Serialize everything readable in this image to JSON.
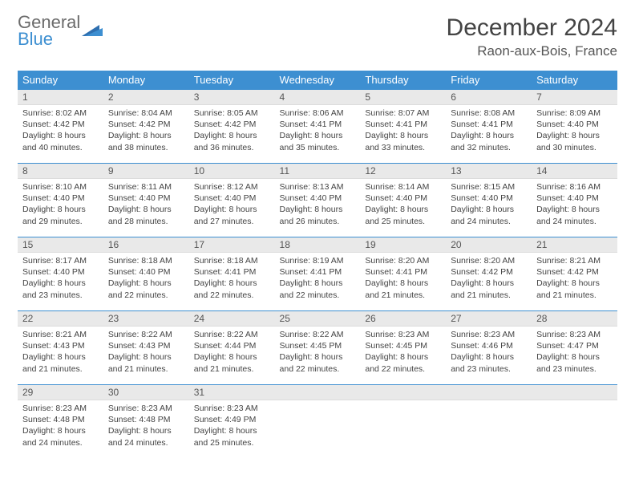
{
  "logo": {
    "line1": "General",
    "line2": "Blue"
  },
  "header": {
    "month_title": "December 2024",
    "location": "Raon-aux-Bois, France"
  },
  "colors": {
    "brand_blue": "#3d8fd1",
    "header_bg": "#3d8fd1",
    "header_text": "#ffffff",
    "daynum_bg": "#e9e9e9",
    "row_border": "#3d8fd1",
    "text": "#444444"
  },
  "calendar": {
    "day_headers": [
      "Sunday",
      "Monday",
      "Tuesday",
      "Wednesday",
      "Thursday",
      "Friday",
      "Saturday"
    ],
    "weeks": [
      [
        {
          "num": "1",
          "sunrise": "Sunrise: 8:02 AM",
          "sunset": "Sunset: 4:42 PM",
          "daylight": "Daylight: 8 hours and 40 minutes."
        },
        {
          "num": "2",
          "sunrise": "Sunrise: 8:04 AM",
          "sunset": "Sunset: 4:42 PM",
          "daylight": "Daylight: 8 hours and 38 minutes."
        },
        {
          "num": "3",
          "sunrise": "Sunrise: 8:05 AM",
          "sunset": "Sunset: 4:42 PM",
          "daylight": "Daylight: 8 hours and 36 minutes."
        },
        {
          "num": "4",
          "sunrise": "Sunrise: 8:06 AM",
          "sunset": "Sunset: 4:41 PM",
          "daylight": "Daylight: 8 hours and 35 minutes."
        },
        {
          "num": "5",
          "sunrise": "Sunrise: 8:07 AM",
          "sunset": "Sunset: 4:41 PM",
          "daylight": "Daylight: 8 hours and 33 minutes."
        },
        {
          "num": "6",
          "sunrise": "Sunrise: 8:08 AM",
          "sunset": "Sunset: 4:41 PM",
          "daylight": "Daylight: 8 hours and 32 minutes."
        },
        {
          "num": "7",
          "sunrise": "Sunrise: 8:09 AM",
          "sunset": "Sunset: 4:40 PM",
          "daylight": "Daylight: 8 hours and 30 minutes."
        }
      ],
      [
        {
          "num": "8",
          "sunrise": "Sunrise: 8:10 AM",
          "sunset": "Sunset: 4:40 PM",
          "daylight": "Daylight: 8 hours and 29 minutes."
        },
        {
          "num": "9",
          "sunrise": "Sunrise: 8:11 AM",
          "sunset": "Sunset: 4:40 PM",
          "daylight": "Daylight: 8 hours and 28 minutes."
        },
        {
          "num": "10",
          "sunrise": "Sunrise: 8:12 AM",
          "sunset": "Sunset: 4:40 PM",
          "daylight": "Daylight: 8 hours and 27 minutes."
        },
        {
          "num": "11",
          "sunrise": "Sunrise: 8:13 AM",
          "sunset": "Sunset: 4:40 PM",
          "daylight": "Daylight: 8 hours and 26 minutes."
        },
        {
          "num": "12",
          "sunrise": "Sunrise: 8:14 AM",
          "sunset": "Sunset: 4:40 PM",
          "daylight": "Daylight: 8 hours and 25 minutes."
        },
        {
          "num": "13",
          "sunrise": "Sunrise: 8:15 AM",
          "sunset": "Sunset: 4:40 PM",
          "daylight": "Daylight: 8 hours and 24 minutes."
        },
        {
          "num": "14",
          "sunrise": "Sunrise: 8:16 AM",
          "sunset": "Sunset: 4:40 PM",
          "daylight": "Daylight: 8 hours and 24 minutes."
        }
      ],
      [
        {
          "num": "15",
          "sunrise": "Sunrise: 8:17 AM",
          "sunset": "Sunset: 4:40 PM",
          "daylight": "Daylight: 8 hours and 23 minutes."
        },
        {
          "num": "16",
          "sunrise": "Sunrise: 8:18 AM",
          "sunset": "Sunset: 4:40 PM",
          "daylight": "Daylight: 8 hours and 22 minutes."
        },
        {
          "num": "17",
          "sunrise": "Sunrise: 8:18 AM",
          "sunset": "Sunset: 4:41 PM",
          "daylight": "Daylight: 8 hours and 22 minutes."
        },
        {
          "num": "18",
          "sunrise": "Sunrise: 8:19 AM",
          "sunset": "Sunset: 4:41 PM",
          "daylight": "Daylight: 8 hours and 22 minutes."
        },
        {
          "num": "19",
          "sunrise": "Sunrise: 8:20 AM",
          "sunset": "Sunset: 4:41 PM",
          "daylight": "Daylight: 8 hours and 21 minutes."
        },
        {
          "num": "20",
          "sunrise": "Sunrise: 8:20 AM",
          "sunset": "Sunset: 4:42 PM",
          "daylight": "Daylight: 8 hours and 21 minutes."
        },
        {
          "num": "21",
          "sunrise": "Sunrise: 8:21 AM",
          "sunset": "Sunset: 4:42 PM",
          "daylight": "Daylight: 8 hours and 21 minutes."
        }
      ],
      [
        {
          "num": "22",
          "sunrise": "Sunrise: 8:21 AM",
          "sunset": "Sunset: 4:43 PM",
          "daylight": "Daylight: 8 hours and 21 minutes."
        },
        {
          "num": "23",
          "sunrise": "Sunrise: 8:22 AM",
          "sunset": "Sunset: 4:43 PM",
          "daylight": "Daylight: 8 hours and 21 minutes."
        },
        {
          "num": "24",
          "sunrise": "Sunrise: 8:22 AM",
          "sunset": "Sunset: 4:44 PM",
          "daylight": "Daylight: 8 hours and 21 minutes."
        },
        {
          "num": "25",
          "sunrise": "Sunrise: 8:22 AM",
          "sunset": "Sunset: 4:45 PM",
          "daylight": "Daylight: 8 hours and 22 minutes."
        },
        {
          "num": "26",
          "sunrise": "Sunrise: 8:23 AM",
          "sunset": "Sunset: 4:45 PM",
          "daylight": "Daylight: 8 hours and 22 minutes."
        },
        {
          "num": "27",
          "sunrise": "Sunrise: 8:23 AM",
          "sunset": "Sunset: 4:46 PM",
          "daylight": "Daylight: 8 hours and 23 minutes."
        },
        {
          "num": "28",
          "sunrise": "Sunrise: 8:23 AM",
          "sunset": "Sunset: 4:47 PM",
          "daylight": "Daylight: 8 hours and 23 minutes."
        }
      ],
      [
        {
          "num": "29",
          "sunrise": "Sunrise: 8:23 AM",
          "sunset": "Sunset: 4:48 PM",
          "daylight": "Daylight: 8 hours and 24 minutes."
        },
        {
          "num": "30",
          "sunrise": "Sunrise: 8:23 AM",
          "sunset": "Sunset: 4:48 PM",
          "daylight": "Daylight: 8 hours and 24 minutes."
        },
        {
          "num": "31",
          "sunrise": "Sunrise: 8:23 AM",
          "sunset": "Sunset: 4:49 PM",
          "daylight": "Daylight: 8 hours and 25 minutes."
        },
        {
          "empty": true
        },
        {
          "empty": true
        },
        {
          "empty": true
        },
        {
          "empty": true
        }
      ]
    ]
  }
}
